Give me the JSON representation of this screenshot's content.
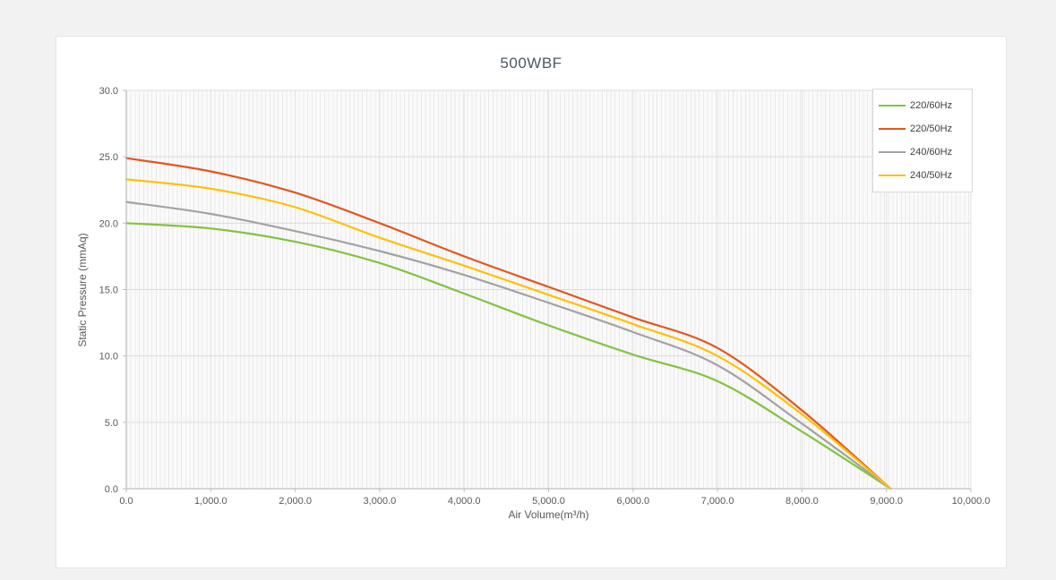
{
  "window": {
    "background_color": "#f2f2f2",
    "card_background": "#ffffff"
  },
  "chart_data": {
    "type": "line",
    "title": "500WBF",
    "xlabel": "Air Volume(m³/h)",
    "ylabel": "Static Pressure (mmAq)",
    "xlim": [
      0,
      10000
    ],
    "ylim": [
      0,
      30
    ],
    "grid": true,
    "legend_position": "top-right",
    "x_ticks": [
      {
        "value": 0,
        "label": "0.0"
      },
      {
        "value": 1000,
        "label": "1,000.0"
      },
      {
        "value": 2000,
        "label": "2,000.0"
      },
      {
        "value": 3000,
        "label": "3,000.0"
      },
      {
        "value": 4000,
        "label": "4,000.0"
      },
      {
        "value": 5000,
        "label": "5,000.0"
      },
      {
        "value": 6000,
        "label": "6,000.0"
      },
      {
        "value": 7000,
        "label": "7,000.0"
      },
      {
        "value": 8000,
        "label": "8,000.0"
      },
      {
        "value": 9000,
        "label": "9,000.0"
      },
      {
        "value": 10000,
        "label": "10,000.0"
      }
    ],
    "y_ticks": [
      {
        "value": 0,
        "label": "0.0"
      },
      {
        "value": 5,
        "label": "5.0"
      },
      {
        "value": 10,
        "label": "10.0"
      },
      {
        "value": 15,
        "label": "15.0"
      },
      {
        "value": 20,
        "label": "20.0"
      },
      {
        "value": 25,
        "label": "25.0"
      },
      {
        "value": 30,
        "label": "30.0"
      }
    ],
    "x": [
      0,
      1000,
      2000,
      3000,
      4000,
      5000,
      6000,
      7000,
      8000,
      9050
    ],
    "series": [
      {
        "name": "220/60Hz",
        "color": "#82c341",
        "values": [
          20.0,
          19.6,
          18.6,
          17.0,
          14.7,
          12.3,
          10.1,
          8.1,
          4.3,
          0
        ]
      },
      {
        "name": "220/50Hz",
        "color": "#e2571e",
        "values": [
          24.9,
          23.9,
          22.3,
          20.0,
          17.5,
          15.2,
          12.9,
          10.6,
          5.9,
          0
        ]
      },
      {
        "name": "240/60Hz",
        "color": "#a3a3a3",
        "values": [
          21.6,
          20.7,
          19.4,
          17.9,
          16.1,
          14.0,
          11.8,
          9.3,
          4.9,
          0
        ]
      },
      {
        "name": "240/50Hz",
        "color": "#ffc000",
        "values": [
          23.3,
          22.6,
          21.2,
          18.9,
          16.8,
          14.6,
          12.4,
          10.0,
          5.6,
          0
        ]
      }
    ],
    "colors": {
      "axis_line": "#bfbfbf",
      "grid_major_h": "#dcdcdc",
      "grid_major_v": "#e3e3e3",
      "grid_minor_v": "#e9e9e9",
      "tick_text": "#595959",
      "title_text": "#4d5866",
      "legend_text": "#404040",
      "legend_border": "#d9d9d9"
    }
  }
}
